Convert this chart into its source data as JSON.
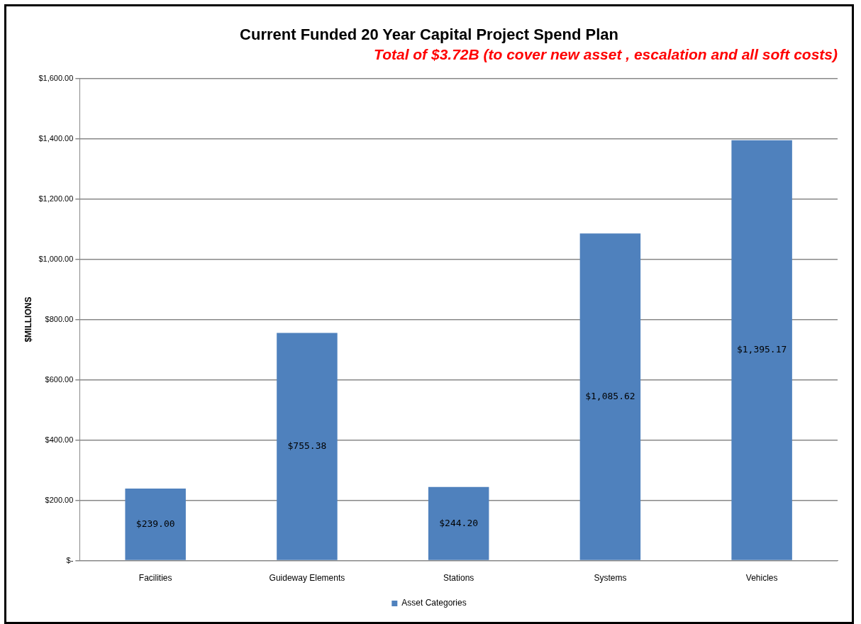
{
  "chart_data": {
    "type": "bar",
    "title": "Current Funded 20 Year Capital Project Spend Plan",
    "subtitle": "Total of $3.72B (to cover new asset , escalation and all soft costs)",
    "ylabel": "$MILLIONS",
    "categories": [
      "Facilities",
      "Guideway Elements",
      "Stations",
      "Systems",
      "Vehicles"
    ],
    "series": [
      {
        "name": "Asset Categories",
        "color": "#4f81bd",
        "values": [
          239.0,
          755.38,
          244.2,
          1085.62,
          1395.17
        ],
        "value_labels": [
          "$239.00",
          "$755.38",
          "$244.20",
          "$1,085.62",
          "$1,395.17"
        ]
      }
    ],
    "ylim": [
      0,
      1600
    ],
    "yticks": [
      {
        "value": 0,
        "label": "$-"
      },
      {
        "value": 200,
        "label": "$200.00"
      },
      {
        "value": 400,
        "label": "$400.00"
      },
      {
        "value": 600,
        "label": "$600.00"
      },
      {
        "value": 800,
        "label": "$800.00"
      },
      {
        "value": 1000,
        "label": "$1,000.00"
      },
      {
        "value": 1200,
        "label": "$1,200.00"
      },
      {
        "value": 1400,
        "label": "$1,400.00"
      },
      {
        "value": 1600,
        "label": "$1,600.00"
      }
    ],
    "grid": "y",
    "legend": "bottom"
  }
}
